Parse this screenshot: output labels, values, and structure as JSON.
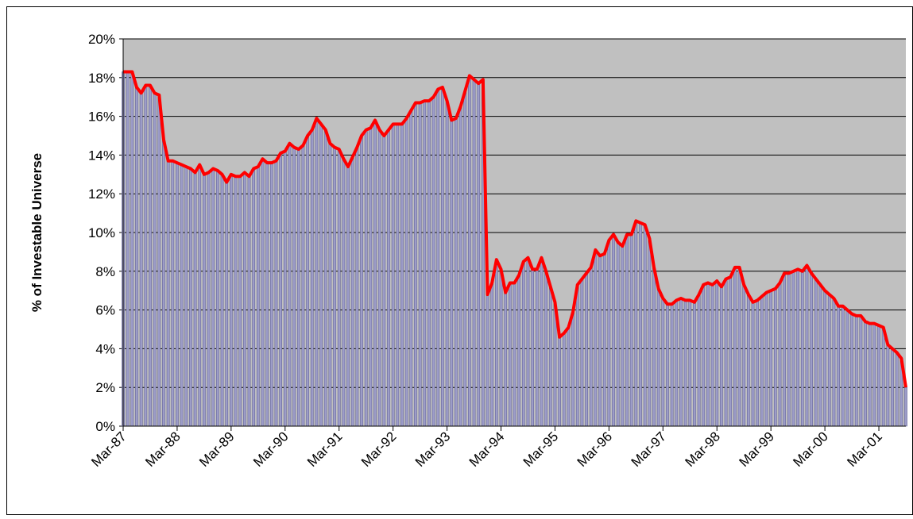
{
  "chart_data": {
    "type": "bar_line",
    "y_label": "% of Investable Universe",
    "categories": [
      "Mar-87",
      null,
      null,
      null,
      null,
      null,
      null,
      null,
      null,
      null,
      null,
      null,
      "Mar-88",
      null,
      null,
      null,
      null,
      null,
      null,
      null,
      null,
      null,
      null,
      null,
      "Mar-89",
      null,
      null,
      null,
      null,
      null,
      null,
      null,
      null,
      null,
      null,
      null,
      "Mar-90",
      null,
      null,
      null,
      null,
      null,
      null,
      null,
      null,
      null,
      null,
      null,
      "Mar-91",
      null,
      null,
      null,
      null,
      null,
      null,
      null,
      null,
      null,
      null,
      null,
      "Mar-92",
      null,
      null,
      null,
      null,
      null,
      null,
      null,
      null,
      null,
      null,
      null,
      "Mar-93",
      null,
      null,
      null,
      null,
      null,
      null,
      null,
      null,
      null,
      null,
      null,
      "Mar-94",
      null,
      null,
      null,
      null,
      null,
      null,
      null,
      null,
      null,
      null,
      null,
      "Mar-95",
      null,
      null,
      null,
      null,
      null,
      null,
      null,
      null,
      null,
      null,
      null,
      "Mar-96",
      null,
      null,
      null,
      null,
      null,
      null,
      null,
      null,
      null,
      null,
      null,
      "Mar-97",
      null,
      null,
      null,
      null,
      null,
      null,
      null,
      null,
      null,
      null,
      null,
      "Mar-98",
      null,
      null,
      null,
      null,
      null,
      null,
      null,
      null,
      null,
      null,
      null,
      "Mar-99",
      null,
      null,
      null,
      null,
      null,
      null,
      null,
      null,
      null,
      null,
      null,
      "Mar-00",
      null,
      null,
      null,
      null,
      null,
      null,
      null,
      null,
      null,
      null,
      null,
      "Mar-01",
      null,
      null,
      null,
      null,
      null,
      null
    ],
    "values": [
      18.3,
      18.3,
      18.3,
      17.5,
      17.2,
      17.6,
      17.6,
      17.2,
      17.1,
      14.8,
      13.7,
      13.7,
      13.6,
      13.5,
      13.4,
      13.3,
      13.1,
      13.5,
      13.0,
      13.1,
      13.3,
      13.2,
      13.0,
      12.6,
      13.0,
      12.9,
      12.9,
      13.1,
      12.9,
      13.3,
      13.4,
      13.8,
      13.6,
      13.6,
      13.7,
      14.1,
      14.2,
      14.6,
      14.4,
      14.3,
      14.5,
      15.0,
      15.3,
      15.9,
      15.6,
      15.3,
      14.6,
      14.4,
      14.3,
      13.8,
      13.4,
      13.9,
      14.4,
      15.0,
      15.3,
      15.4,
      15.8,
      15.3,
      15.0,
      15.3,
      15.6,
      15.6,
      15.6,
      15.9,
      16.3,
      16.7,
      16.7,
      16.8,
      16.8,
      17.0,
      17.4,
      17.5,
      16.8,
      15.8,
      15.9,
      16.5,
      17.3,
      18.1,
      17.9,
      17.7,
      17.9,
      6.8,
      7.4,
      8.6,
      8.1,
      6.9,
      7.4,
      7.4,
      7.8,
      8.5,
      8.7,
      8.1,
      8.1,
      8.7,
      8.0,
      7.2,
      6.4,
      4.6,
      4.8,
      5.1,
      5.9,
      7.3,
      7.6,
      7.9,
      8.2,
      9.1,
      8.8,
      8.9,
      9.6,
      9.9,
      9.5,
      9.3,
      9.9,
      9.9,
      10.6,
      10.5,
      10.4,
      9.7,
      8.2,
      7.1,
      6.6,
      6.3,
      6.3,
      6.5,
      6.6,
      6.5,
      6.5,
      6.4,
      6.8,
      7.3,
      7.4,
      7.3,
      7.5,
      7.2,
      7.6,
      7.7,
      8.2,
      8.2,
      7.3,
      6.8,
      6.4,
      6.5,
      6.7,
      6.9,
      7.0,
      7.1,
      7.4,
      7.9,
      7.9,
      8.0,
      8.1,
      8.0,
      8.3,
      7.9,
      7.6,
      7.3,
      7.0,
      6.8,
      6.6,
      6.2,
      6.2,
      6.0,
      5.8,
      5.7,
      5.7,
      5.4,
      5.3,
      5.3,
      5.2,
      5.1,
      4.2,
      4.0,
      3.8,
      3.5,
      2.0
    ],
    "color": "#ff0000",
    "bar_color": "#9c9cc8",
    "plot_background": "#c0c0c0",
    "ylim": [
      0,
      20
    ],
    "yticks": [
      {
        "value": 0,
        "label": "0%"
      },
      {
        "value": 2,
        "label": "2%"
      },
      {
        "value": 4,
        "label": "4%"
      },
      {
        "value": 6,
        "label": "6%"
      },
      {
        "value": 8,
        "label": "8%"
      },
      {
        "value": 10,
        "label": "10%"
      },
      {
        "value": 12,
        "label": "12%"
      },
      {
        "value": 14,
        "label": "14%"
      },
      {
        "value": 16,
        "label": "16%"
      },
      {
        "value": 18,
        "label": "18%"
      },
      {
        "value": 20,
        "label": "20%"
      }
    ],
    "grid": true
  }
}
